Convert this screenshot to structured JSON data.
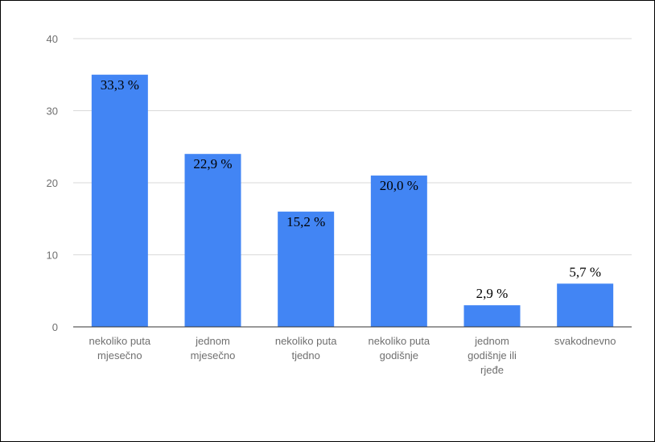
{
  "chart_data": {
    "type": "bar",
    "categories": [
      [
        "nekoliko puta",
        "mjesečno"
      ],
      [
        "jednom",
        "mjesečno"
      ],
      [
        "nekoliko puta",
        "tjedno"
      ],
      [
        "nekoliko puta",
        "godišnje"
      ],
      [
        "jednom",
        "godišnje ili",
        "rjeđe"
      ],
      [
        "svakodnevno"
      ]
    ],
    "values": [
      35,
      24,
      16,
      21,
      3,
      6
    ],
    "data_labels": [
      "33,3 %",
      "22,9 %",
      "15,2 %",
      "20,0 %",
      "2,9 %",
      "5,7 %"
    ],
    "y_ticks": [
      "0",
      "10",
      "20",
      "30",
      "40"
    ],
    "ylim": [
      0,
      40
    ],
    "grid": true,
    "bar_color": "#4285f4",
    "grid_color": "#d9d9d9",
    "axis_color": "#333333"
  }
}
